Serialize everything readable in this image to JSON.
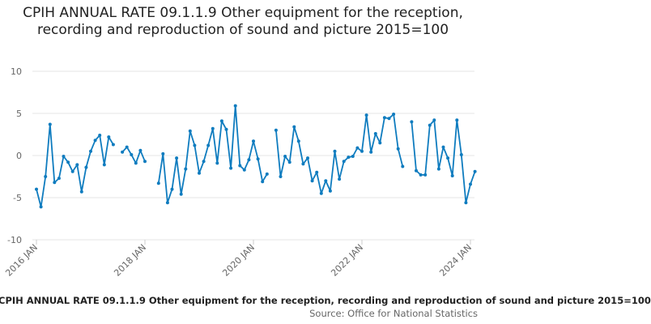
{
  "chart_data": {
    "type": "line",
    "title": "CPIH ANNUAL RATE 09.1.1.9 Other equipment for the reception, recording and reproduction of sound and picture 2015=100",
    "xlabel": "",
    "ylabel": "",
    "ylim": [
      -10,
      10
    ],
    "y_ticks": [
      10,
      5,
      0,
      -5,
      -10
    ],
    "x_ticks": [
      "2016 JAN",
      "2018 JAN",
      "2020 JAN",
      "2022 JAN",
      "2024 JAN"
    ],
    "x_start": "2016-01",
    "x_end": "2024-01",
    "grid": "horizontal",
    "legend": "none",
    "series_color": "#0f7cbf",
    "series": [
      {
        "x_start": "2016-01",
        "values": [
          -4.0,
          -6.1,
          -2.5,
          3.7,
          -3.2,
          -2.7,
          -0.1,
          -0.8,
          -1.9,
          -1.1,
          -4.3,
          -1.4,
          0.5,
          1.8,
          2.4,
          -1.1,
          2.2,
          1.3,
          null,
          0.4,
          1.0,
          0.1,
          -0.9,
          0.6,
          -0.7,
          null,
          null,
          -3.3,
          0.2,
          -5.6,
          -4.0,
          -0.3,
          -4.6,
          -1.6,
          2.9,
          1.2,
          -2.1,
          -0.7,
          1.2,
          3.2,
          -0.9,
          4.1,
          3.1,
          -1.5,
          5.9,
          -1.2,
          -1.7,
          -0.5,
          1.7,
          -0.4,
          -3.1,
          -2.2,
          null,
          3.0,
          -2.5,
          -0.1,
          -0.8,
          3.4,
          1.7,
          -1.0,
          -0.3,
          -3.0,
          -2.0,
          -4.5,
          -3.0,
          -4.2,
          0.5,
          -2.8,
          -0.7,
          -0.2,
          -0.1,
          0.9,
          0.5,
          4.8,
          0.4,
          2.6,
          1.5,
          4.5,
          4.4,
          4.9,
          0.8,
          -1.3,
          null,
          4.0,
          -1.8,
          -2.3,
          -2.3,
          3.6,
          4.2,
          -1.6,
          1.0,
          -0.3,
          -2.4,
          4.2,
          0.1,
          -5.6,
          -3.4,
          -1.9
        ]
      }
    ]
  },
  "footer": {
    "title": "CPIH ANNUAL RATE 09.1.1.9 Other equipment for the reception, recording and reproduction of sound and picture 2015=100",
    "source": "Source: Office for National Statistics"
  }
}
